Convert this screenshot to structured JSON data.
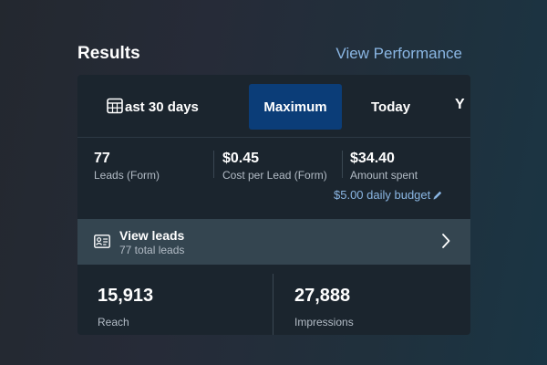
{
  "header": {
    "title": "Results",
    "link": "View Performance"
  },
  "date_range": {
    "icon": "calendar-icon",
    "options": [
      {
        "label": "Last 30 days",
        "visible_text": "ast 30 days",
        "selected": false
      },
      {
        "label": "Maximum",
        "selected": true
      },
      {
        "label": "Today",
        "selected": false
      },
      {
        "label": "Y",
        "visible_text": "Y",
        "selected": false
      }
    ]
  },
  "stats": [
    {
      "value": "77",
      "label": "Leads (Form)"
    },
    {
      "value": "$0.45",
      "label": "Cost per Lead (Form)"
    },
    {
      "value": "$34.40",
      "label": "Amount spent"
    }
  ],
  "budget": {
    "text": "$5.00 daily budget",
    "icon": "pencil-icon"
  },
  "leads": {
    "icon": "contact-card-icon",
    "title": "View leads",
    "subtitle": "77 total leads",
    "chevron": "chevron-right-icon"
  },
  "metrics": [
    {
      "value": "15,913",
      "label": "Reach"
    },
    {
      "value": "27,888",
      "label": "Impressions"
    }
  ],
  "colors": {
    "link": "#8ab6e3",
    "selected_tab": "#0b3d78",
    "card_bg": "#1b252e",
    "leads_bg": "#344550"
  }
}
